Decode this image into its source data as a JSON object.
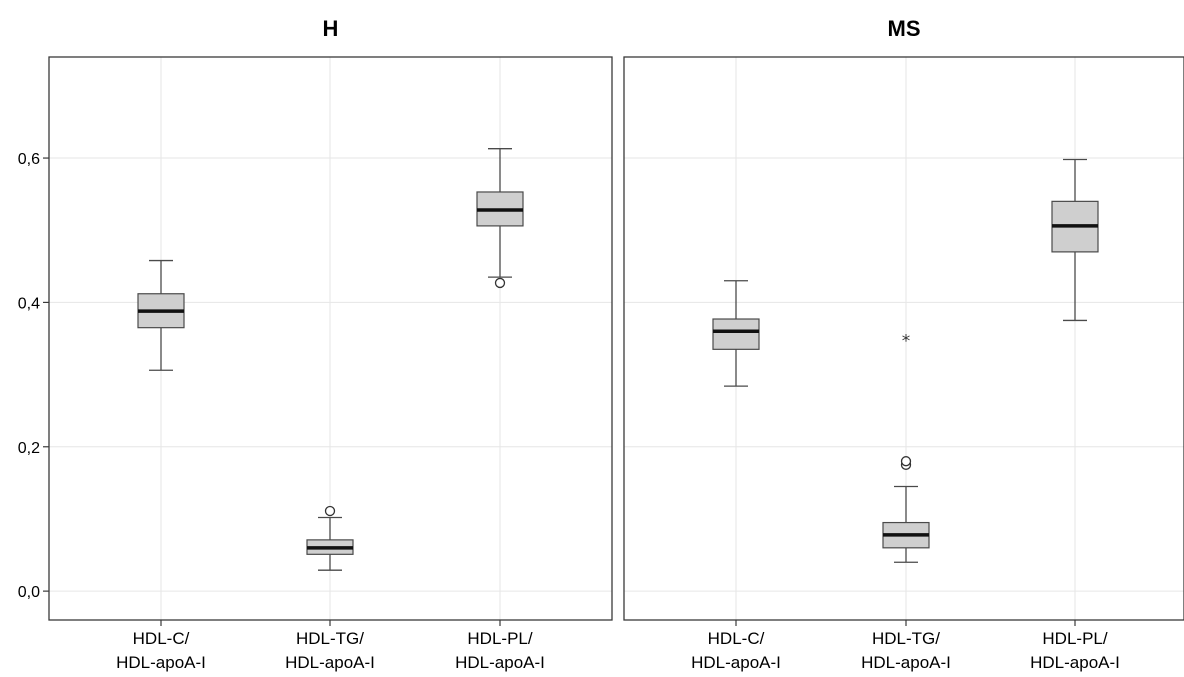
{
  "chart_data": [
    {
      "type": "boxplot",
      "title": "H",
      "categories": [
        "HDL-C/\nHDL-apoA-I",
        "HDL-TG/\nHDL-apoA-I",
        "HDL-PL/\nHDL-apoA-I"
      ],
      "ylim": [
        -0.04,
        0.74
      ],
      "yticks": [
        0.0,
        0.2,
        0.4,
        0.6
      ],
      "ytick_labels": [
        "0,0",
        "0,2",
        "0,4",
        "0,6"
      ],
      "grid": true,
      "boxes": [
        {
          "whisker_low": 0.306,
          "q1": 0.365,
          "median": 0.388,
          "q3": 0.412,
          "whisker_high": 0.458,
          "outliers": [],
          "extremes": []
        },
        {
          "whisker_low": 0.029,
          "q1": 0.051,
          "median": 0.06,
          "q3": 0.071,
          "whisker_high": 0.102,
          "outliers": [
            0.111
          ],
          "extremes": []
        },
        {
          "whisker_low": 0.435,
          "q1": 0.506,
          "median": 0.528,
          "q3": 0.553,
          "whisker_high": 0.613,
          "outliers": [
            0.427
          ],
          "extremes": []
        }
      ]
    },
    {
      "type": "boxplot",
      "title": "MS",
      "categories": [
        "HDL-C/\nHDL-apoA-I",
        "HDL-TG/\nHDL-apoA-I",
        "HDL-PL/\nHDL-apoA-I"
      ],
      "ylim": [
        -0.04,
        0.74
      ],
      "grid": true,
      "boxes": [
        {
          "whisker_low": 0.284,
          "q1": 0.335,
          "median": 0.36,
          "q3": 0.377,
          "whisker_high": 0.43,
          "outliers": [],
          "extremes": []
        },
        {
          "whisker_low": 0.04,
          "q1": 0.06,
          "median": 0.078,
          "q3": 0.095,
          "whisker_high": 0.145,
          "outliers": [
            0.175,
            0.18
          ],
          "extremes": [
            0.35
          ]
        },
        {
          "whisker_low": 0.375,
          "q1": 0.47,
          "median": 0.506,
          "q3": 0.54,
          "whisker_high": 0.598,
          "outliers": [],
          "extremes": []
        }
      ]
    }
  ],
  "colors": {
    "box_fill": "#cfcfcf",
    "box_stroke": "#4a4a4a",
    "median": "#111111",
    "grid": "#e6e6e6",
    "frame": "#3a3a3a"
  }
}
